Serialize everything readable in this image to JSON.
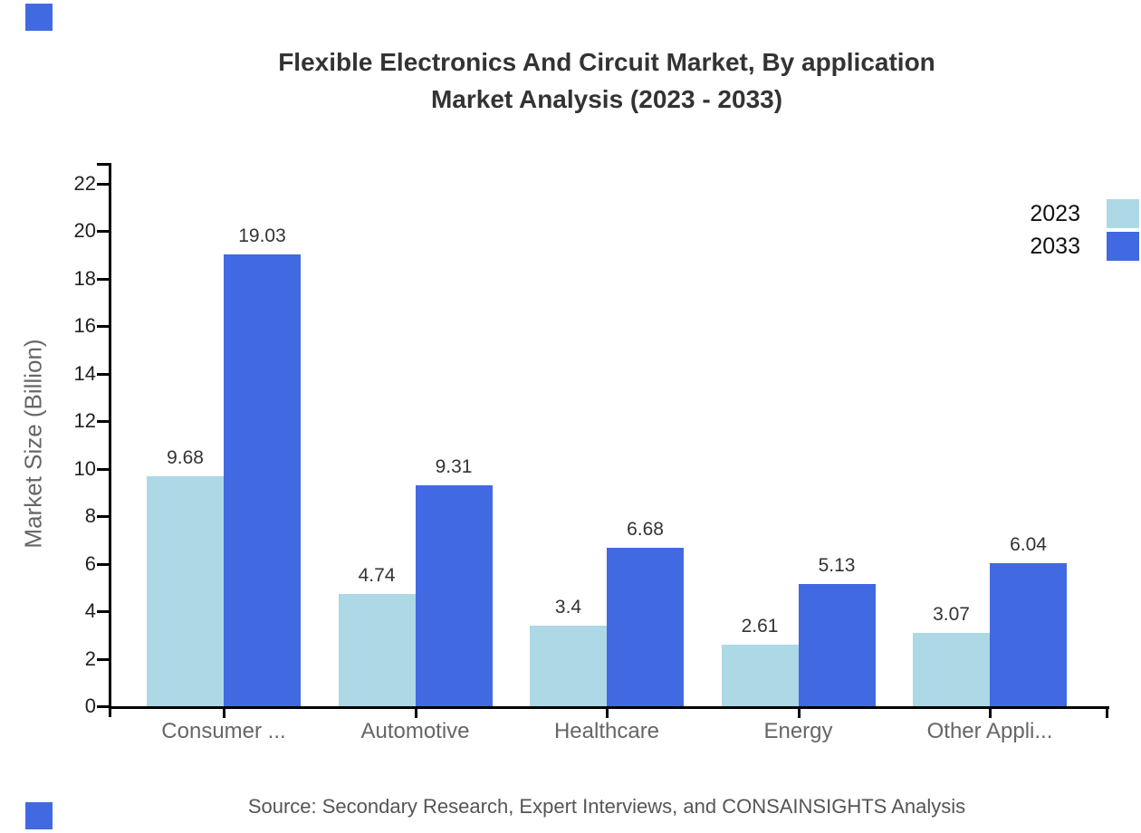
{
  "title": {
    "line1": "Flexible Electronics And Circuit Market, By application",
    "line2": "Market Analysis (2023 - 2033)"
  },
  "y_axis": {
    "label": "Market Size (Billion)"
  },
  "source": "Source: Secondary Research, Expert Interviews, and CONSAINSIGHTS Analysis",
  "colors": {
    "series_2023": "#ADD8E6",
    "series_2033": "#4169E1",
    "brand_mark": "#4169E1",
    "axis": "#000000",
    "title_text": "#333333",
    "category_text": "#666666",
    "value_text": "#333333",
    "source_text": "#555555"
  },
  "chart_data": {
    "type": "bar",
    "title": "Flexible Electronics And Circuit Market, By application Market Analysis (2023 - 2033)",
    "categories": [
      "Consumer ...",
      "Automotive",
      "Healthcare",
      "Energy",
      "Other Appli..."
    ],
    "series": [
      {
        "name": "2023",
        "color": "#ADD8E6",
        "values": [
          9.68,
          4.74,
          3.4,
          2.61,
          3.07
        ]
      },
      {
        "name": "2033",
        "color": "#4169E1",
        "values": [
          19.03,
          9.31,
          6.68,
          5.13,
          6.04
        ]
      }
    ],
    "xlabel": "",
    "ylabel": "Market Size (Billion)",
    "ylim": [
      0,
      22
    ],
    "ytick_step": 2,
    "yticks": [
      0,
      2,
      4,
      6,
      8,
      10,
      12,
      14,
      16,
      18,
      20,
      22
    ],
    "grid": false,
    "legend_position": "top-right",
    "value_labels": true
  }
}
